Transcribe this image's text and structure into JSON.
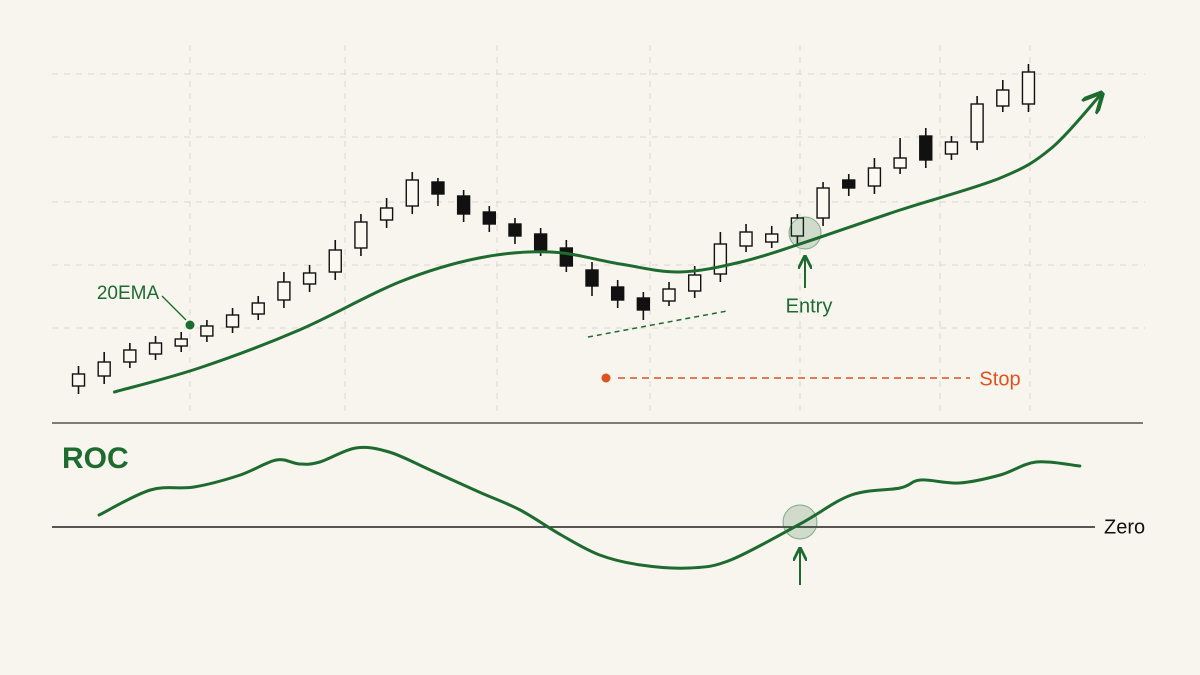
{
  "chart_data": [
    {
      "type": "candlestick",
      "x": [
        1,
        2,
        3,
        4,
        5,
        6,
        7,
        8,
        9,
        10,
        11,
        12,
        13,
        14,
        15,
        16,
        17,
        18,
        19,
        20,
        21,
        22,
        23,
        24,
        25,
        26,
        27,
        28,
        29,
        30,
        31,
        32,
        33,
        34,
        35,
        36,
        37,
        38
      ],
      "open": [
        8.5,
        11,
        14.5,
        16.5,
        18.5,
        21,
        23.25,
        26.5,
        30,
        34,
        37,
        43,
        50,
        53.5,
        59.5,
        56,
        52,
        49,
        46.5,
        43,
        37.5,
        33.25,
        30.5,
        29.75,
        32.25,
        36.5,
        43.5,
        44.5,
        46,
        50.5,
        60,
        58.5,
        63,
        71,
        66.5,
        69.5,
        78.5,
        79
      ],
      "high": [
        13.5,
        17,
        19.25,
        21,
        22,
        25,
        28,
        31,
        37,
        38.75,
        45,
        51.5,
        55.5,
        62,
        60.5,
        57.5,
        53.5,
        50.5,
        48,
        45,
        39.5,
        35,
        32,
        34.5,
        38.5,
        47,
        49,
        48.5,
        51.5,
        59.5,
        61.5,
        65.5,
        70.5,
        73,
        71,
        81,
        85,
        89
      ],
      "low": [
        6.5,
        9,
        13,
        15,
        17,
        19.5,
        21.75,
        25,
        28,
        32,
        35,
        41,
        48,
        51.5,
        53.5,
        49.5,
        47,
        44,
        41,
        37,
        31,
        28,
        25,
        28.5,
        30.5,
        34.5,
        42,
        43,
        44,
        48.5,
        56,
        56.5,
        61.5,
        63,
        65,
        67.5,
        77,
        77
      ],
      "close": [
        11.5,
        14.5,
        17.5,
        19.25,
        20.25,
        23.5,
        26.25,
        29.25,
        34.5,
        36.75,
        42.5,
        49.5,
        53,
        60,
        56.5,
        51.5,
        49,
        46,
        42.5,
        38.5,
        33.5,
        30,
        27.5,
        32.75,
        36.25,
        44,
        47,
        46.5,
        50.5,
        58,
        58,
        63,
        65.5,
        65,
        69.5,
        79,
        82.5,
        87
      ],
      "up_color": "#fbf8f1",
      "down_color": "#111111",
      "xlim": [
        -0.5,
        42.5
      ],
      "ylim": [
        0,
        90
      ],
      "grid": true,
      "overlay": {
        "type": "line",
        "name": "20EMA",
        "color": "#1e6b30",
        "x": [
          2.4,
          5.7,
          9.6,
          13.5,
          16.6,
          19.4,
          22.1,
          24.4,
          26.8,
          29.1,
          33,
          36.9,
          38.9,
          40.8
        ],
        "values": [
          7,
          13,
          22.5,
          34.5,
          40.5,
          42,
          39,
          37,
          39.5,
          44,
          52.5,
          60.5,
          68,
          81.25
        ]
      },
      "annotations": [
        "Entry",
        "Stop"
      ]
    },
    {
      "type": "line",
      "title": "ROC",
      "color": "#1e6b30",
      "x": [
        1.8,
        3.8,
        5.5,
        7.3,
        8.7,
        9.6,
        10.4,
        11.8,
        13.1,
        14.7,
        16.6,
        18.2,
        19.8,
        21.3,
        22.9,
        24.8,
        26.4,
        29.1,
        31.1,
        33,
        33.8,
        35.3,
        36.9,
        38.3,
        40
      ],
      "values": [
        1.2,
        3.7,
        4,
        5.2,
        6.7,
        6.3,
        6.5,
        7.9,
        7.5,
        5.7,
        3.5,
        1.7,
        -0.8,
        -2.8,
        -3.8,
        -4.1,
        -3.3,
        0.3,
        3.2,
        3.9,
        4.7,
        4.4,
        5.2,
        6.5,
        6.1
      ],
      "xlim": [
        -0.5,
        42.5
      ],
      "ylim": [
        -7.3,
        9.7
      ],
      "hlines": [
        {
          "value": 0,
          "label": "Zero"
        }
      ]
    }
  ]
}
